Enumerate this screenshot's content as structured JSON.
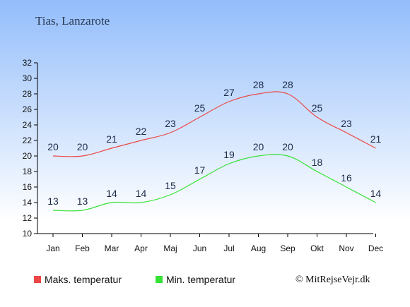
{
  "title": "Tias, Lanzarote",
  "copyright": "© MitRejseVejr.dk",
  "colors": {
    "sky_top": "#93bdfb",
    "sky_bottom": "#ffffff",
    "max_line": "#ec4747",
    "min_line": "#35e235",
    "axis": "#000000",
    "label": "#1d2b4a"
  },
  "chart_data": {
    "type": "line",
    "categories": [
      "Jan",
      "Feb",
      "Mar",
      "Apr",
      "Maj",
      "Jun",
      "Jul",
      "Aug",
      "Sep",
      "Okt",
      "Nov",
      "Dec"
    ],
    "series": [
      {
        "name": "Maks. temperatur",
        "values": [
          20,
          20,
          21,
          22,
          23,
          25,
          27,
          28,
          28,
          25,
          23,
          21
        ],
        "color": "#ec4747"
      },
      {
        "name": "Min. temperatur",
        "values": [
          13,
          13,
          14,
          14,
          15,
          17,
          19,
          20,
          20,
          18,
          16,
          14
        ],
        "color": "#35e235"
      }
    ],
    "yticks": [
      10,
      12,
      14,
      16,
      18,
      20,
      22,
      24,
      26,
      28,
      30,
      32
    ],
    "ylim": [
      10,
      32
    ],
    "grid": false,
    "legend_position": "bottom"
  }
}
